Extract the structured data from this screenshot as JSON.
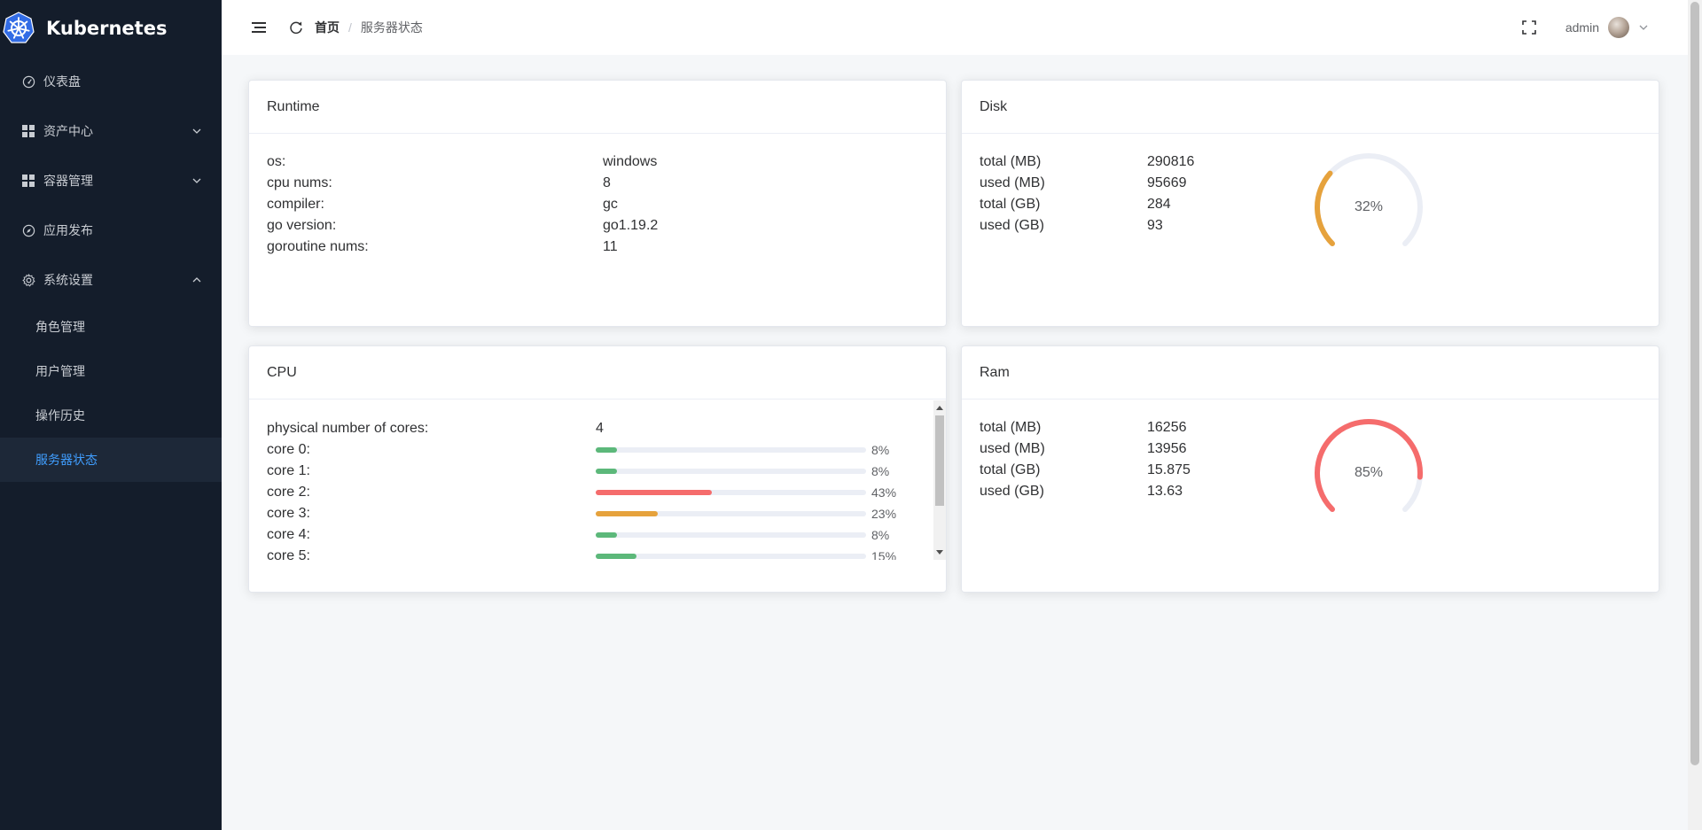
{
  "brand": {
    "title": "Kubernetes",
    "logo_icon": "kubernetes-helm-logo",
    "logo_color": "#326ce5"
  },
  "sidebar": {
    "items": [
      {
        "label": "仪表盘",
        "icon": "dashboard-icon"
      },
      {
        "label": "资产中心",
        "icon": "grid-icon",
        "expandable": true,
        "expanded": false
      },
      {
        "label": "容器管理",
        "icon": "grid-icon",
        "expandable": true,
        "expanded": false
      },
      {
        "label": "应用发布",
        "icon": "compass-icon"
      },
      {
        "label": "系统设置",
        "icon": "gear-icon",
        "expandable": true,
        "expanded": true
      }
    ],
    "sub_items": [
      {
        "label": "角色管理"
      },
      {
        "label": "用户管理"
      },
      {
        "label": "操作历史"
      },
      {
        "label": "服务器状态",
        "active": true
      }
    ],
    "active_color": "#409eff"
  },
  "header": {
    "breadcrumb": {
      "home": "首页",
      "separator": "/",
      "current": "服务器状态"
    },
    "user": {
      "name": "admin"
    }
  },
  "runtime": {
    "title": "Runtime",
    "rows": [
      {
        "key": "os:",
        "value": "windows"
      },
      {
        "key": "cpu nums:",
        "value": "8"
      },
      {
        "key": "compiler:",
        "value": "gc"
      },
      {
        "key": "go version:",
        "value": "go1.19.2"
      },
      {
        "key": "goroutine nums:",
        "value": "11"
      }
    ]
  },
  "disk": {
    "title": "Disk",
    "rows": [
      {
        "key": "total (MB)",
        "value": "290816"
      },
      {
        "key": "used (MB)",
        "value": "95669"
      },
      {
        "key": "total (GB)",
        "value": "284"
      },
      {
        "key": "used (GB)",
        "value": "93"
      }
    ],
    "percent": 32,
    "percent_label": "32%",
    "color": "#e6a23c"
  },
  "cpu": {
    "title": "CPU",
    "cores_label": "physical number of cores:",
    "cores_value": "4",
    "cores": [
      {
        "label": "core 0:",
        "percent": 8,
        "pct_label": "8%",
        "color": "#5cb87a"
      },
      {
        "label": "core 1:",
        "percent": 8,
        "pct_label": "8%",
        "color": "#5cb87a"
      },
      {
        "label": "core 2:",
        "percent": 43,
        "pct_label": "43%",
        "color": "#f56c6c"
      },
      {
        "label": "core 3:",
        "percent": 23,
        "pct_label": "23%",
        "color": "#e6a23c"
      },
      {
        "label": "core 4:",
        "percent": 8,
        "pct_label": "8%",
        "color": "#5cb87a"
      },
      {
        "label": "core 5:",
        "percent": 15,
        "pct_label": "15%",
        "color": "#5cb87a"
      }
    ]
  },
  "ram": {
    "title": "Ram",
    "rows": [
      {
        "key": "total (MB)",
        "value": "16256"
      },
      {
        "key": "used (MB)",
        "value": "13956"
      },
      {
        "key": "total (GB)",
        "value": "15.875"
      },
      {
        "key": "used (GB)",
        "value": "13.63"
      }
    ],
    "percent": 85,
    "percent_label": "85%",
    "color": "#f56c6c"
  }
}
